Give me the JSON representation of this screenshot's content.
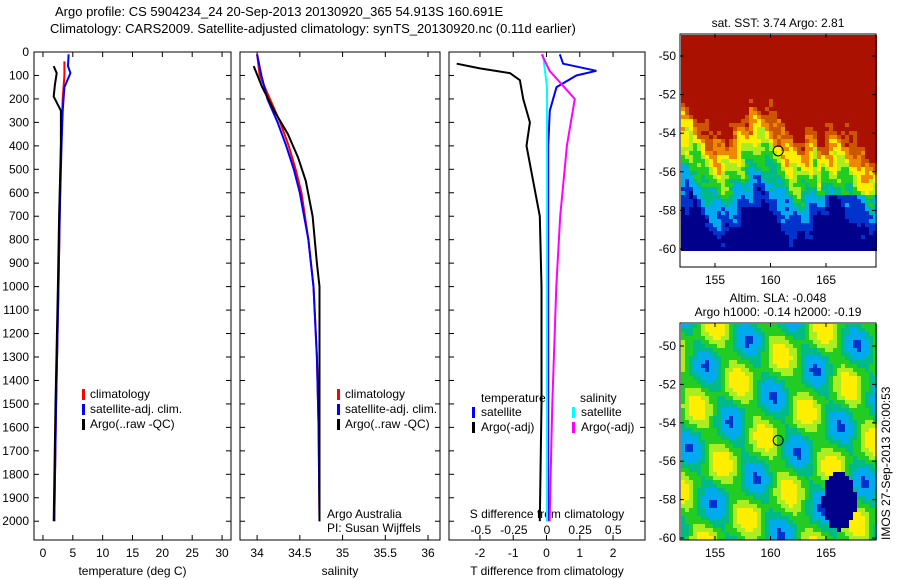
{
  "title_line1": "Argo profile: CS 5904234_24 20-Sep-2013 20130920_365 54.913S 160.691E",
  "title_line2": "Climatology: CARS2009. Satellite-adjusted climatology: synTS_20130920.nc (0.11d earlier)",
  "credit_line1": "Argo Australia",
  "credit_line2": "PI: Susan Wijffels",
  "timestamp": "IMOS 27-Sep-2013 20:00:53",
  "colors": {
    "climatology": "#ff0000",
    "satellite": "#0000ff",
    "argo": "#000000",
    "sal_satellite": "#00ffff",
    "sal_argo": "#ff00ff"
  },
  "chart_data": [
    {
      "type": "line",
      "xlabel": "temperature (deg C)",
      "ylabel": "depth",
      "xlim": [
        -1.5,
        31.5
      ],
      "ylim": [
        2080,
        0
      ],
      "xticks": [
        "0",
        "5",
        "10",
        "15",
        "20",
        "25",
        "30"
      ],
      "xtickvals": [
        0,
        5,
        10,
        15,
        20,
        25,
        30
      ],
      "yticks": [
        "0",
        "100",
        "200",
        "300",
        "400",
        "500",
        "600",
        "700",
        "800",
        "900",
        "1000",
        "1100",
        "1200",
        "1300",
        "1400",
        "1500",
        "1600",
        "1700",
        "1800",
        "1900",
        "2000"
      ],
      "legend": [
        "climatology",
        "satellite-adj. clim.",
        "Argo(..raw -QC)"
      ],
      "series": [
        {
          "name": "climatology",
          "color": "red",
          "depth": [
            40,
            100,
            200,
            400,
            700,
            1000,
            1500,
            2000
          ],
          "values": [
            3.6,
            3.6,
            3.3,
            3.0,
            2.8,
            2.6,
            2.2,
            1.9
          ]
        },
        {
          "name": "satellite-adj. clim.",
          "color": "blue",
          "depth": [
            10,
            60,
            90,
            150,
            250,
            400,
            700,
            1000,
            1500,
            2000
          ],
          "values": [
            4.3,
            4.2,
            4.6,
            3.6,
            3.3,
            3.1,
            2.8,
            2.6,
            2.2,
            1.9
          ]
        },
        {
          "name": "Argo(..raw -QC)",
          "color": "black",
          "depth": [
            60,
            90,
            140,
            190,
            250,
            400,
            700,
            1000,
            1500,
            2000
          ],
          "values": [
            1.8,
            2.3,
            2.0,
            1.8,
            3.0,
            3.0,
            2.7,
            2.5,
            2.1,
            1.8
          ]
        }
      ]
    },
    {
      "type": "line",
      "xlabel": "salinity",
      "xlim": [
        33.8,
        36.14
      ],
      "ylim": [
        2080,
        0
      ],
      "xticks": [
        "34",
        "34.5",
        "35",
        "35.5",
        "36"
      ],
      "xtickvals": [
        34,
        34.5,
        35,
        35.5,
        36
      ],
      "legend": [
        "climatology",
        "satellite-adj. clim.",
        "Argo(..raw -QC)"
      ],
      "series": [
        {
          "name": "climatology",
          "color": "red",
          "depth": [
            10,
            100,
            200,
            300,
            400,
            500,
            600,
            800,
            1000,
            1300,
            1600,
            2000
          ],
          "values": [
            34.0,
            34.03,
            34.15,
            34.27,
            34.37,
            34.45,
            34.52,
            34.6,
            34.66,
            34.7,
            34.72,
            34.73
          ]
        },
        {
          "name": "satellite-adj. clim.",
          "color": "blue",
          "depth": [
            10,
            100,
            200,
            300,
            400,
            500,
            600,
            800,
            1000,
            1300,
            1600,
            2000
          ],
          "values": [
            34.0,
            34.05,
            34.12,
            34.24,
            34.34,
            34.43,
            34.5,
            34.6,
            34.66,
            34.7,
            34.72,
            34.73
          ]
        },
        {
          "name": "Argo(..raw -QC)",
          "color": "black",
          "depth": [
            60,
            150,
            250,
            350,
            450,
            550,
            700,
            900,
            1000,
            1500,
            2000
          ],
          "values": [
            33.96,
            34.06,
            34.2,
            34.36,
            34.48,
            34.57,
            34.65,
            34.7,
            34.73,
            34.73,
            34.73
          ]
        }
      ]
    },
    {
      "type": "line",
      "xlabel": "T difference from climatology",
      "xlabel2": "S difference from climatology",
      "xlim": [
        -2.93,
        2.96
      ],
      "ylim": [
        2080,
        0
      ],
      "xticks": [
        "-2",
        "-1",
        "0",
        "1",
        "2"
      ],
      "xtickvals": [
        -2,
        -1,
        0,
        1,
        2
      ],
      "xticks2": [
        "-0.5",
        "-0.25",
        "0",
        "0.25",
        "0.5"
      ],
      "xtickvals2": [
        -0.5,
        -0.25,
        0,
        0.25,
        0.5
      ],
      "xlim2": [
        -0.74,
        0.74
      ],
      "legend_titles": [
        "temperature",
        "salinity"
      ],
      "legend": [
        "satellite",
        "Argo(-adj)",
        "satellite",
        "Argo(-adj)"
      ],
      "series": [
        {
          "name": "T satellite",
          "color": "blue",
          "axis": "T",
          "depth": [
            10,
            50,
            80,
            100,
            150,
            250,
            400,
            1000,
            2000
          ],
          "values": [
            0.4,
            0.5,
            1.5,
            0.9,
            0.3,
            0.1,
            0.05,
            0.05,
            0.05
          ]
        },
        {
          "name": "T Argo(-adj)",
          "color": "black",
          "axis": "T",
          "depth": [
            50,
            70,
            90,
            120,
            200,
            300,
            400,
            700,
            1000,
            1500,
            2000
          ],
          "values": [
            -2.7,
            -2.0,
            -1.1,
            -0.8,
            -0.7,
            -0.5,
            -0.6,
            -0.2,
            -0.15,
            -0.15,
            -0.2
          ]
        },
        {
          "name": "S satellite",
          "color": "cyan",
          "axis": "S",
          "depth": [
            10,
            60,
            150,
            400,
            1000,
            2000
          ],
          "values": [
            -0.03,
            -0.02,
            0.0,
            0.0,
            0.0,
            0.0
          ]
        },
        {
          "name": "S Argo(-adj)",
          "color": "magenta",
          "axis": "S",
          "depth": [
            10,
            80,
            200,
            300,
            400,
            700,
            1000,
            1500,
            2000
          ],
          "values": [
            -0.04,
            0.02,
            0.21,
            0.18,
            0.15,
            0.1,
            0.07,
            0.04,
            0.02
          ]
        }
      ]
    },
    {
      "type": "heatmap",
      "title": "sat. SST: 3.74 Argo: 2.81",
      "xticks": [
        "155",
        "160",
        "165"
      ],
      "yticks": [
        "-50",
        "-52",
        "-54",
        "-56",
        "-58",
        "-60"
      ]
    },
    {
      "type": "heatmap",
      "title1": "Altim. SLA: -0.048",
      "title2": "Argo h1000: -0.14 h2000: -0.19",
      "xticks": [
        "155",
        "160",
        "165"
      ],
      "yticks": [
        "-50",
        "-52",
        "-54",
        "-56",
        "-58",
        "-60"
      ]
    }
  ]
}
